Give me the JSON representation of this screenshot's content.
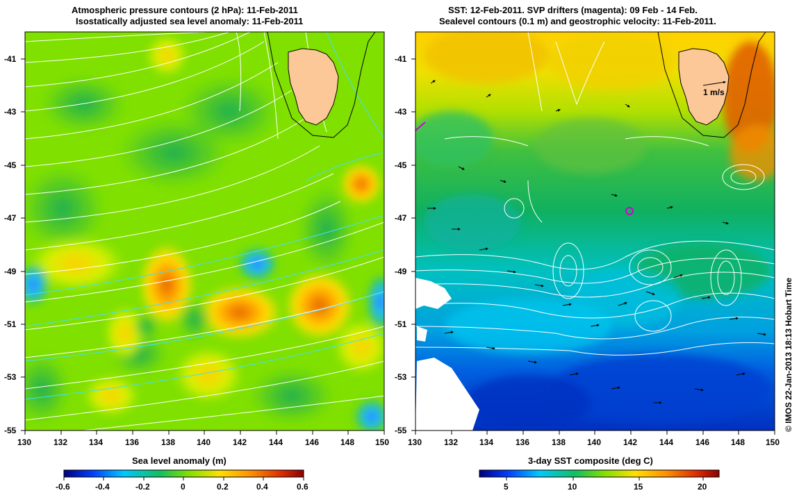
{
  "left_panel": {
    "title_line1": "Atmospheric pressure contours (2 hPa): 11-Feb-2011",
    "title_line2": "Isostatically adjusted sea level anomaly: 11-Feb-2011",
    "colorbar_label": "Sea level anomaly (m)",
    "colorbar_ticks": [
      "-0.6",
      "-0.4",
      "-0.2",
      "0",
      "0.2",
      "0.4",
      "0.6"
    ],
    "colorbar_colors": [
      "#00007f",
      "#0040ff",
      "#00c8ff",
      "#10c060",
      "#80e000",
      "#ffe000",
      "#ff9000",
      "#e03000",
      "#900000"
    ]
  },
  "right_panel": {
    "title_line1": "SST: 12-Feb-2011. SVP drifters (magenta): 09 Feb - 14 Feb.",
    "title_line2": "Sealevel contours (0.1 m) and geostrophic velocity: 11-Feb-2011.",
    "colorbar_label": "3-day SST composite (deg C)",
    "colorbar_ticks": [
      "5",
      "10",
      "15",
      "20"
    ],
    "colorbar_colors": [
      "#00007f",
      "#0040ff",
      "#00c8ff",
      "#10c060",
      "#80e000",
      "#ffe000",
      "#ff9000",
      "#e03000",
      "#900000"
    ],
    "velocity_scale_label": "1 m/s"
  },
  "axes": {
    "lon_ticks": [
      "130",
      "132",
      "134",
      "136",
      "138",
      "140",
      "142",
      "144",
      "146",
      "148",
      "150"
    ],
    "lat_ticks": [
      "-41",
      "-43",
      "-45",
      "-47",
      "-49",
      "-51",
      "-53",
      "-55"
    ]
  },
  "credit": "© IMOS 22-Jan-2013 18:13 Hobart Time",
  "colors": {
    "land": "#fcc898",
    "coast": "#000000",
    "pressure_contour_white": "#ffffff",
    "pressure_contour_cyan": "#40e0ff",
    "drifter": "#d000d0"
  }
}
